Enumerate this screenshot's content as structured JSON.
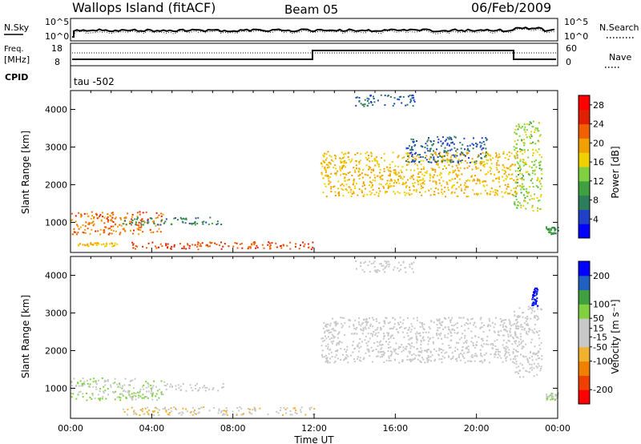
{
  "header": {
    "station": "Wallops Island (fitACF)",
    "beam": "Beam 05",
    "date": "06/Feb/2009"
  },
  "noise_panel": {
    "left_label": "N.Sky",
    "left_ticks": [
      "10^5",
      "10^0"
    ],
    "right_label": "N.Search",
    "right_ticks": [
      "10^5",
      "10^0"
    ]
  },
  "freq_panel": {
    "left_label_line1": "Freq.",
    "left_label_line2": "[MHz]",
    "left_ticks": [
      "18",
      "8"
    ],
    "right_label": "Nave",
    "right_ticks": [
      "60",
      "0"
    ],
    "cpid_label": "CPID",
    "cpid_text": "tau -502"
  },
  "colors": {
    "power_scale": [
      "#0000ff",
      "#2040c8",
      "#2e7d5a",
      "#3fa040",
      "#7fcf40",
      "#f0d000",
      "#f0a000",
      "#f06000",
      "#e02000",
      "#ff0000"
    ],
    "velocity_scale": [
      "#ff0000",
      "#f04000",
      "#f08000",
      "#f0b030",
      "#c8c8c8",
      "#c8c8c8",
      "#80d040",
      "#40a040",
      "#2060c0",
      "#0000ff"
    ],
    "ground_scatter": "#c8c8c8"
  },
  "chart_data": [
    {
      "type": "heatmap",
      "title": "",
      "xlabel": "",
      "ylabel": "Slant Range [km]",
      "ylim": [
        200,
        4500
      ],
      "yticks": [
        "1000",
        "2000",
        "3000",
        "4000"
      ],
      "colorbar": {
        "label": "Power [dB]",
        "ticks": [
          "4",
          "8",
          "12",
          "16",
          "20",
          "24",
          "28"
        ],
        "range": [
          0,
          30
        ]
      },
      "scatter_regions": [
        {
          "t_start": 0.0,
          "t_end": 4.6,
          "r_low": 700,
          "r_high": 1300,
          "level": 22
        },
        {
          "t_start": 0.3,
          "t_end": 2.3,
          "r_low": 380,
          "r_high": 480,
          "level": 18
        },
        {
          "t_start": 2.5,
          "t_end": 7.5,
          "r_low": 950,
          "r_high": 1150,
          "level": 8
        },
        {
          "t_start": 3.0,
          "t_end": 11.9,
          "r_low": 300,
          "r_high": 500,
          "level": 24
        },
        {
          "t_start": 12.3,
          "t_end": 22.0,
          "r_low": 1700,
          "r_high": 2900,
          "level": 18
        },
        {
          "t_start": 16.5,
          "t_end": 20.5,
          "r_low": 2600,
          "r_high": 3300,
          "level": 6
        },
        {
          "t_start": 14.0,
          "t_end": 17.0,
          "r_low": 4100,
          "r_high": 4400,
          "level": 6
        },
        {
          "t_start": 21.8,
          "t_end": 23.2,
          "r_low": 1300,
          "r_high": 3700,
          "level": 14
        },
        {
          "t_start": 23.4,
          "t_end": 24.0,
          "r_low": 700,
          "r_high": 900,
          "level": 10
        }
      ]
    },
    {
      "type": "heatmap",
      "title": "",
      "xlabel": "Time UT",
      "ylabel": "Slant Range [km]",
      "ylim": [
        200,
        4500
      ],
      "yticks": [
        "1000",
        "2000",
        "3000",
        "4000"
      ],
      "xticks": [
        "00:00",
        "04:00",
        "08:00",
        "12:00",
        "16:00",
        "20:00",
        "00:00"
      ],
      "xlim": [
        0,
        24
      ],
      "colorbar": {
        "label": "Velocity [m s⁻¹]",
        "ticks": [
          "200",
          "100",
          "50",
          "15",
          "-15",
          "-50",
          "-100",
          "-200"
        ],
        "range": [
          -250,
          250
        ]
      },
      "scatter_regions": [
        {
          "t_start": 0.0,
          "t_end": 4.6,
          "r_low": 700,
          "r_high": 1300,
          "level": 45
        },
        {
          "t_start": 4.6,
          "t_end": 7.5,
          "r_low": 950,
          "r_high": 1150,
          "level": 0
        },
        {
          "t_start": 2.5,
          "t_end": 12.0,
          "r_low": 300,
          "r_high": 520,
          "level": -40
        },
        {
          "t_start": 12.3,
          "t_end": 22.0,
          "r_low": 1700,
          "r_high": 2900,
          "level": 0
        },
        {
          "t_start": 14.0,
          "t_end": 17.0,
          "r_low": 4100,
          "r_high": 4400,
          "level": 0
        },
        {
          "t_start": 21.8,
          "t_end": 23.2,
          "r_low": 1300,
          "r_high": 3200,
          "level": 0
        },
        {
          "t_start": 22.7,
          "t_end": 23.0,
          "r_low": 3200,
          "r_high": 3700,
          "level": 230
        },
        {
          "t_start": 23.4,
          "t_end": 24.0,
          "r_low": 700,
          "r_high": 900,
          "level": 40
        }
      ]
    }
  ]
}
